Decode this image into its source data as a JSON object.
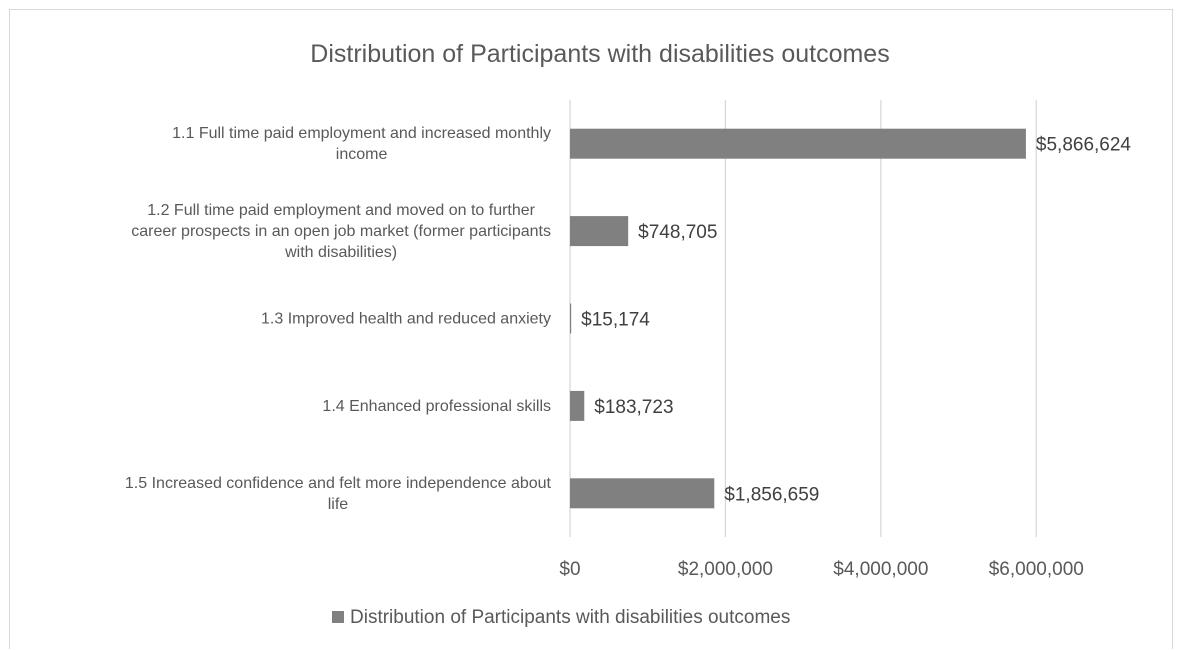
{
  "chart_data": {
    "type": "bar",
    "orientation": "horizontal",
    "title": "Distribution of Participants with disabilities outcomes",
    "categories": [
      [
        "1.1 Full time paid employment and increased monthly",
        "income"
      ],
      [
        "1.2 Full time paid employment and moved on to further",
        "career prospects in an open job market (former participants",
        "with disabilities)"
      ],
      [
        "1.3 Improved health and reduced anxiety"
      ],
      [
        "1.4 Enhanced professional skills"
      ],
      [
        "1.5 Increased confidence and felt more independence about",
        "life"
      ]
    ],
    "series": [
      {
        "name": "Distribution of Participants with disabilities outcomes",
        "values": [
          5866624,
          748705,
          15174,
          183723,
          1856659
        ],
        "labels": [
          "$5,866,624",
          "$748,705",
          "$15,174",
          "$183,723",
          "$1,856,659"
        ],
        "color": "#808080"
      }
    ],
    "xlim": [
      0,
      7000000
    ],
    "xticks": [
      0,
      2000000,
      4000000,
      6000000
    ],
    "xtick_labels": [
      "$0",
      "$2,000,000",
      "$4,000,000",
      "$6,000,000"
    ],
    "grid": true,
    "legend": "bottom"
  },
  "colors": {
    "bar": "#808080",
    "gridline": "#d9d9d9",
    "text": "#595959",
    "data_label": "#404040"
  }
}
